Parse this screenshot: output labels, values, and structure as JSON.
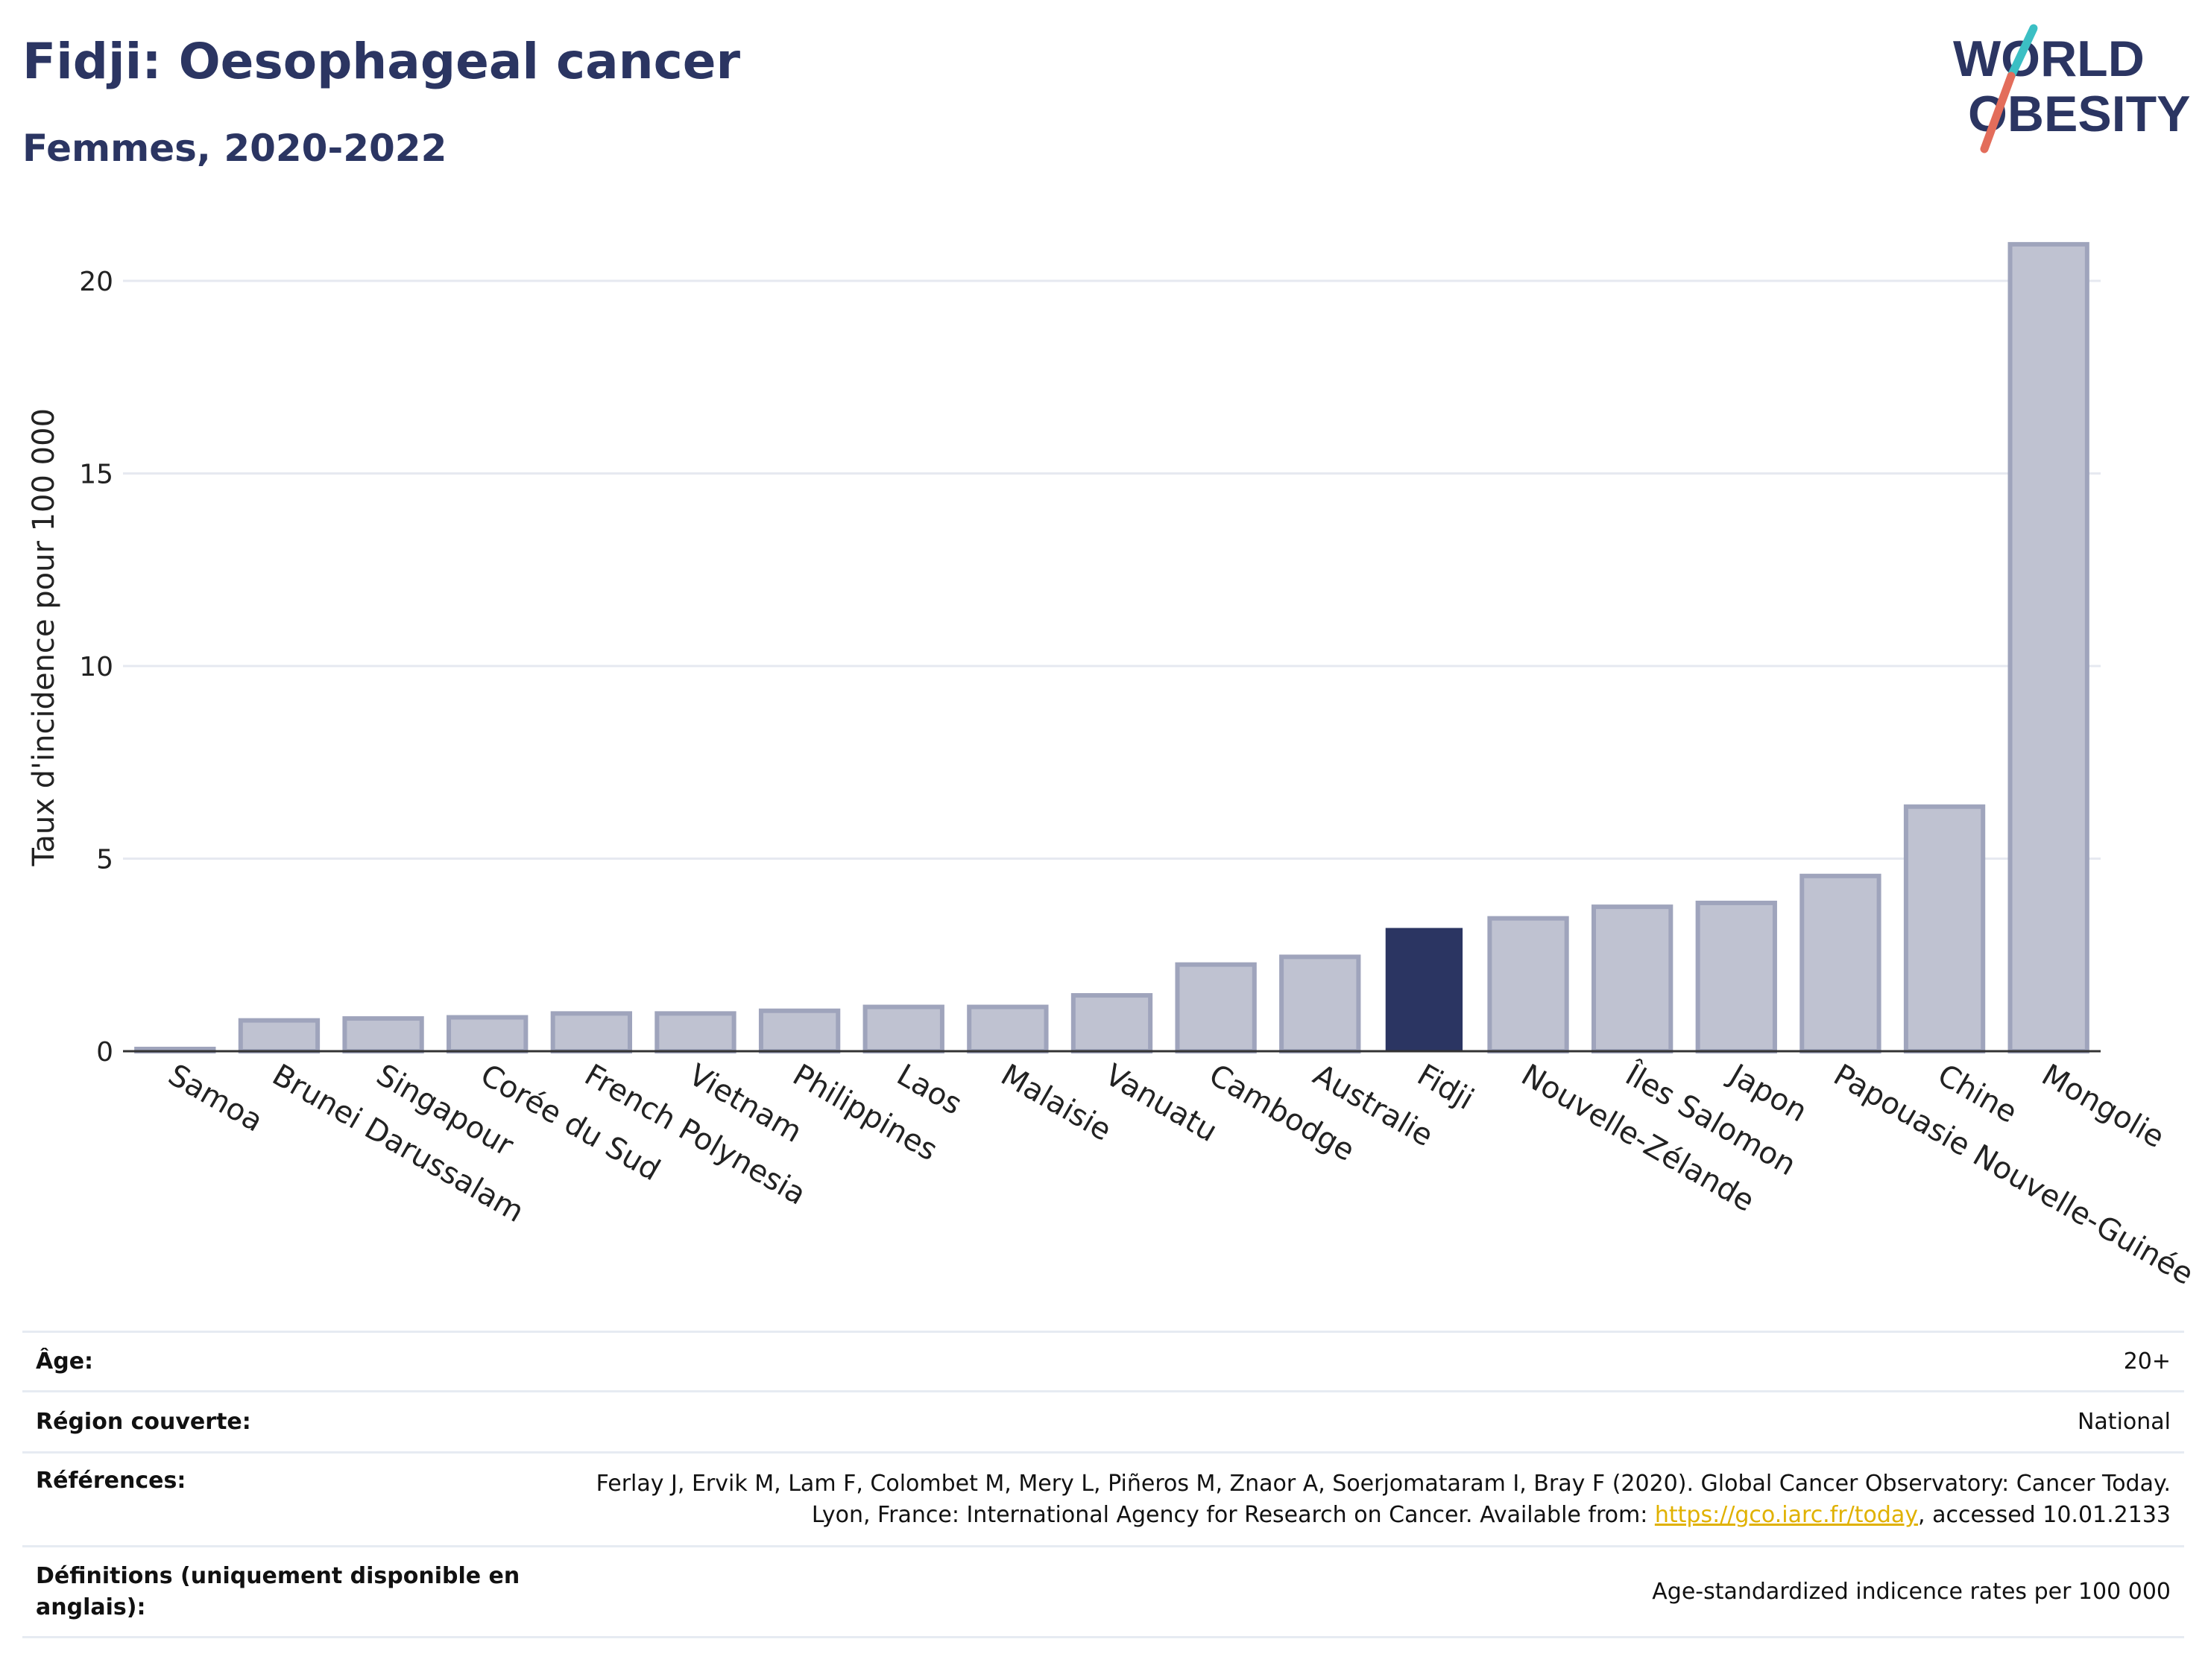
{
  "header": {
    "title": "Fidji: Oesophageal cancer",
    "subtitle": "Femmes, 2020-2022"
  },
  "logo": {
    "line1": "WORLD",
    "line2": "OBESITY",
    "colors": {
      "text": "#2b3562",
      "slash_teal": "#3bbfc4",
      "slash_coral": "#e36d5b"
    }
  },
  "chart_data": {
    "type": "bar",
    "categories": [
      "Samoa",
      "Brunei Darussalam",
      "Singapour",
      "Corée du Sud",
      "French Polynesia",
      "Vietnam",
      "Philippines",
      "Laos",
      "Malaisie",
      "Vanuatu",
      "Cambodge",
      "Australie",
      "Fidji",
      "Nouvelle-Zélande",
      "Îles Salomon",
      "Japon",
      "Papouasie Nouvelle-Guinée",
      "Chine",
      "Mongolie"
    ],
    "values": [
      0.05,
      0.8,
      0.85,
      0.88,
      0.98,
      0.98,
      1.05,
      1.15,
      1.15,
      1.45,
      2.25,
      2.45,
      3.2,
      3.45,
      3.75,
      3.85,
      4.55,
      6.35,
      20.95
    ],
    "highlight": "Fidji",
    "ylabel": "Taux d'incidence pour 100 000",
    "yticks": [
      0,
      5,
      10,
      15,
      20
    ],
    "ylim": [
      0,
      21.5
    ],
    "grid": true,
    "colors": {
      "bar": "#bfc2d1",
      "bar_border": "#9fa4bc",
      "highlight": "#2b3562",
      "grid": "#e6e9f0",
      "axis": "#333333"
    }
  },
  "info": [
    {
      "label": "Âge:",
      "value": "20+"
    },
    {
      "label": "Région couverte:",
      "value": "National"
    },
    {
      "label": "Références:",
      "value_pre": "Ferlay J, Ervik M, Lam F, Colombet M, Mery L, Piñeros M, Znaor A, Soerjomataram I, Bray F (2020). Global Cancer Observatory: Cancer Today. Lyon, France: International Agency for Research on Cancer. Available from: ",
      "link": "https://gco.iarc.fr/today",
      "value_post": ", accessed 10.01.2133"
    },
    {
      "label": "Définitions (uniquement disponible en anglais):",
      "value": "Age-standardized indicence rates per 100 000"
    }
  ]
}
